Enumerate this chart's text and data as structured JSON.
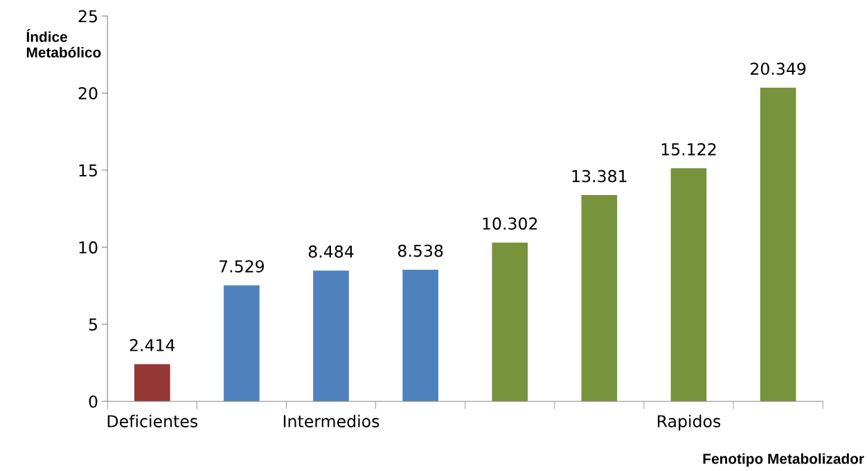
{
  "chart_data": {
    "type": "bar",
    "xlabel": "Fenotipo Metabolizador",
    "ylabel": "Índice\nMetabólico",
    "categories": [
      "Deficientes",
      null,
      "Intermedios",
      null,
      null,
      null,
      "Rapidos",
      null
    ],
    "values": [
      2.414,
      7.529,
      8.484,
      8.538,
      10.302,
      13.381,
      15.122,
      20.349
    ],
    "colors": [
      "#953735",
      "#4f81bd",
      "#4f81bd",
      "#4f81bd",
      "#77933c",
      "#77933c",
      "#77933c",
      "#77933c"
    ],
    "ylim": [
      0,
      25
    ],
    "yticks": [
      0,
      5,
      10,
      15,
      20,
      25
    ],
    "data_labels": true,
    "grid": false,
    "legend": false
  }
}
